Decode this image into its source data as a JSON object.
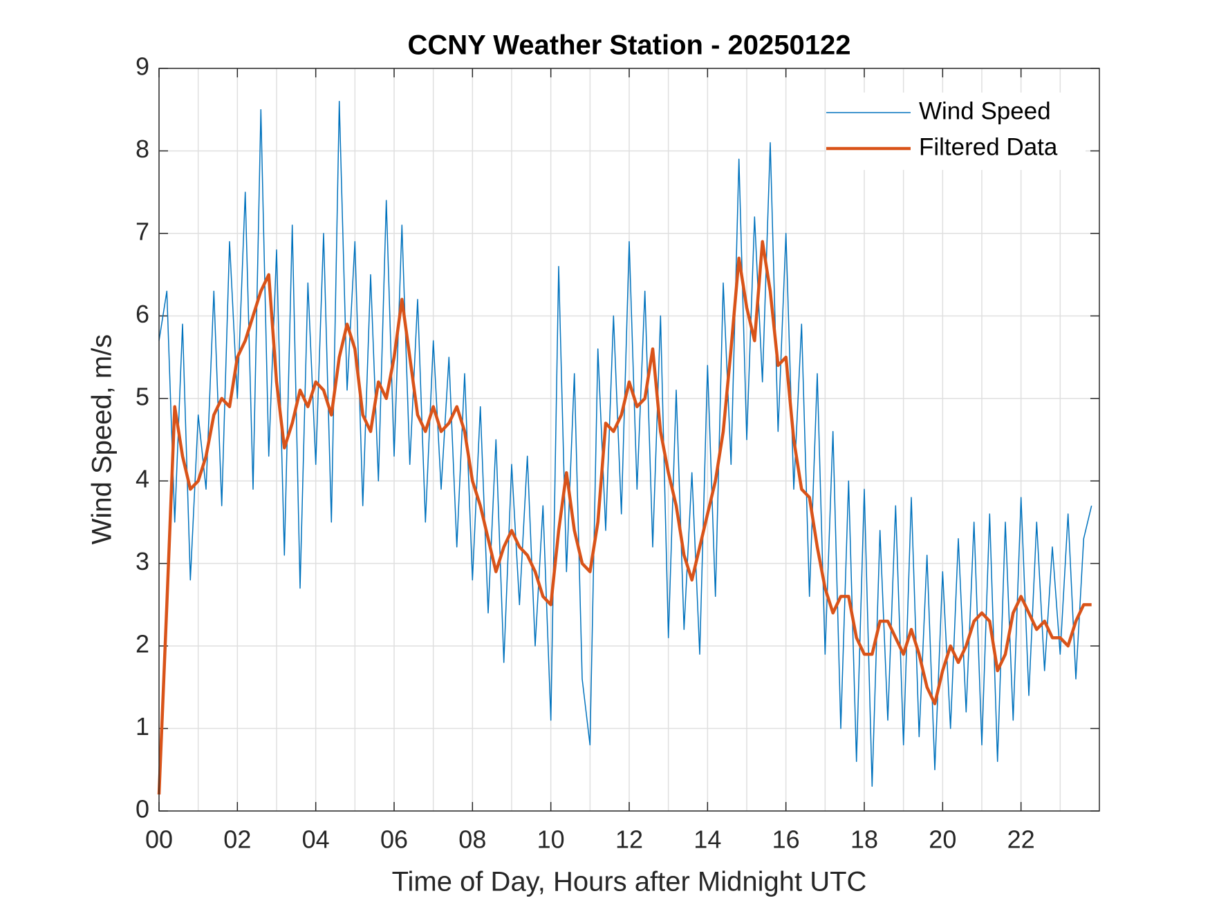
{
  "chart_data": {
    "type": "line",
    "title": "CCNY Weather Station - 20250122",
    "xlabel": "Time of Day, Hours after Midnight UTC",
    "ylabel": "Wind Speed, m/s",
    "x": [
      0,
      0.2,
      0.4,
      0.6,
      0.8,
      1,
      1.2,
      1.4,
      1.6,
      1.8,
      2,
      2.2,
      2.4,
      2.6,
      2.8,
      3,
      3.2,
      3.4,
      3.6,
      3.8,
      4,
      4.2,
      4.4,
      4.6,
      4.8,
      5,
      5.2,
      5.4,
      5.6,
      5.8,
      6,
      6.2,
      6.4,
      6.6,
      6.8,
      7,
      7.2,
      7.4,
      7.6,
      7.8,
      8,
      8.2,
      8.4,
      8.6,
      8.8,
      9,
      9.2,
      9.4,
      9.6,
      9.8,
      10,
      10.2,
      10.4,
      10.6,
      10.8,
      11,
      11.2,
      11.4,
      11.6,
      11.8,
      12,
      12.2,
      12.4,
      12.6,
      12.8,
      13,
      13.2,
      13.4,
      13.6,
      13.8,
      14,
      14.2,
      14.4,
      14.6,
      14.8,
      15,
      15.2,
      15.4,
      15.6,
      15.8,
      16,
      16.2,
      16.4,
      16.6,
      16.8,
      17,
      17.2,
      17.4,
      17.6,
      17.8,
      18,
      18.2,
      18.4,
      18.6,
      18.8,
      19,
      19.2,
      19.4,
      19.6,
      19.8,
      20,
      20.2,
      20.4,
      20.6,
      20.8,
      21,
      21.2,
      21.4,
      21.6,
      21.8,
      22,
      22.2,
      22.4,
      22.6,
      22.8,
      23,
      23.2,
      23.4,
      23.6,
      23.8
    ],
    "series": [
      {
        "name": "Wind Speed",
        "color": "#0072bd",
        "width": 1.5,
        "values": [
          5.7,
          6.3,
          3.5,
          5.9,
          2.8,
          4.8,
          3.9,
          6.3,
          3.7,
          6.9,
          5.0,
          7.5,
          3.9,
          8.5,
          4.3,
          6.8,
          3.1,
          7.1,
          2.7,
          6.4,
          4.2,
          7.0,
          3.5,
          8.6,
          5.1,
          6.9,
          3.7,
          6.5,
          4.0,
          7.4,
          4.3,
          7.1,
          4.2,
          6.2,
          3.5,
          5.7,
          3.9,
          5.5,
          3.2,
          5.3,
          2.8,
          4.9,
          2.4,
          4.5,
          1.8,
          4.2,
          2.5,
          4.3,
          2.0,
          3.7,
          1.1,
          6.6,
          2.9,
          5.3,
          1.6,
          0.8,
          5.6,
          3.4,
          6.0,
          3.6,
          6.9,
          3.9,
          6.3,
          3.2,
          6.0,
          2.1,
          5.1,
          2.2,
          4.1,
          1.9,
          5.4,
          2.6,
          6.4,
          4.2,
          7.9,
          4.5,
          7.2,
          5.2,
          8.1,
          4.6,
          7.0,
          3.9,
          5.9,
          2.6,
          5.3,
          1.9,
          4.6,
          1.0,
          4.0,
          0.6,
          3.9,
          0.3,
          3.4,
          1.1,
          3.7,
          0.8,
          3.8,
          0.9,
          3.1,
          0.5,
          2.9,
          1.0,
          3.3,
          1.2,
          3.5,
          0.8,
          3.6,
          0.6,
          3.5,
          1.1,
          3.8,
          1.4,
          3.5,
          1.7,
          3.2,
          1.9,
          3.6,
          1.6,
          3.3,
          3.7
        ]
      },
      {
        "name": "Filtered Data",
        "color": "#d95319",
        "width": 4.5,
        "values": [
          0.2,
          2.5,
          4.9,
          4.3,
          3.9,
          4.0,
          4.3,
          4.8,
          5.0,
          4.9,
          5.5,
          5.7,
          6.0,
          6.3,
          6.5,
          5.2,
          4.4,
          4.7,
          5.1,
          4.9,
          5.2,
          5.1,
          4.8,
          5.5,
          5.9,
          5.6,
          4.8,
          4.6,
          5.2,
          5.0,
          5.5,
          6.2,
          5.5,
          4.8,
          4.6,
          4.9,
          4.6,
          4.7,
          4.9,
          4.6,
          4.0,
          3.7,
          3.3,
          2.9,
          3.2,
          3.4,
          3.2,
          3.1,
          2.9,
          2.6,
          2.5,
          3.4,
          4.1,
          3.4,
          3.0,
          2.9,
          3.5,
          4.7,
          4.6,
          4.8,
          5.2,
          4.9,
          5.0,
          5.6,
          4.6,
          4.1,
          3.7,
          3.1,
          2.8,
          3.2,
          3.6,
          4.0,
          4.6,
          5.6,
          6.7,
          6.1,
          5.7,
          6.9,
          6.3,
          5.4,
          5.5,
          4.5,
          3.9,
          3.8,
          3.2,
          2.7,
          2.4,
          2.6,
          2.6,
          2.1,
          1.9,
          1.9,
          2.3,
          2.3,
          2.1,
          1.9,
          2.2,
          1.9,
          1.5,
          1.3,
          1.7,
          2.0,
          1.8,
          2.0,
          2.3,
          2.4,
          2.3,
          1.7,
          1.9,
          2.4,
          2.6,
          2.4,
          2.2,
          2.3,
          2.1,
          2.1,
          2.0,
          2.3,
          2.5,
          2.5
        ]
      }
    ],
    "xlim": [
      0,
      24
    ],
    "xticks": [
      {
        "value": 0,
        "label": "00"
      },
      {
        "value": 2,
        "label": "02"
      },
      {
        "value": 4,
        "label": "04"
      },
      {
        "value": 6,
        "label": "06"
      },
      {
        "value": 8,
        "label": "08"
      },
      {
        "value": 10,
        "label": "10"
      },
      {
        "value": 12,
        "label": "12"
      },
      {
        "value": 14,
        "label": "14"
      },
      {
        "value": 16,
        "label": "16"
      },
      {
        "value": 18,
        "label": "18"
      },
      {
        "value": 20,
        "label": "20"
      },
      {
        "value": 22,
        "label": "22"
      }
    ],
    "ylim": [
      0,
      9
    ],
    "yticks": [
      0,
      1,
      2,
      3,
      4,
      5,
      6,
      7,
      8,
      9
    ],
    "grid": true,
    "minor_xgrid": 1,
    "legend": "upper-right"
  }
}
